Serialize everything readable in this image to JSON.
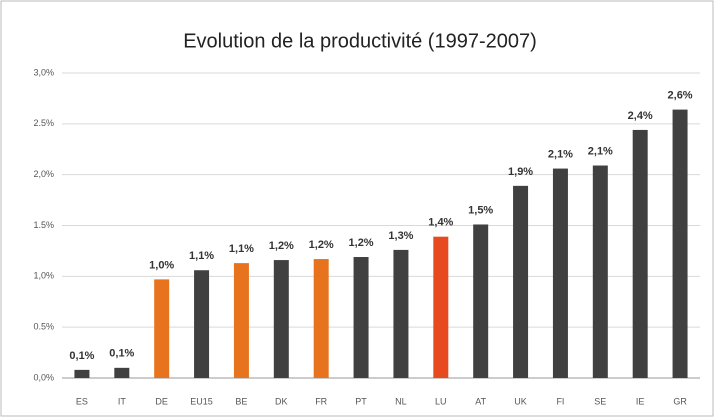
{
  "chart_data": {
    "type": "bar",
    "title": "Evolution de la productivité (1997-2007)",
    "categories": [
      "ES",
      "IT",
      "DE",
      "EU15",
      "BE",
      "DK",
      "FR",
      "PT",
      "NL",
      "LU",
      "AT",
      "UK",
      "FI",
      "SE",
      "IE",
      "GR"
    ],
    "values": [
      0.08,
      0.1,
      0.97,
      1.06,
      1.13,
      1.16,
      1.17,
      1.19,
      1.26,
      1.39,
      1.51,
      1.89,
      2.06,
      2.09,
      2.44,
      2.64
    ],
    "value_labels": [
      "0,1%",
      "0,1%",
      "1,0%",
      "1,1%",
      "1,1%",
      "1,2%",
      "1,2%",
      "1,2%",
      "1,3%",
      "1,4%",
      "1,5%",
      "1,9%",
      "2,1%",
      "2,1%",
      "2,4%",
      "2,6%"
    ],
    "colors": [
      "#404040",
      "#404040",
      "#e8731f",
      "#404040",
      "#e8731f",
      "#404040",
      "#e8731f",
      "#404040",
      "#404040",
      "#e84a1f",
      "#404040",
      "#404040",
      "#404040",
      "#404040",
      "#404040",
      "#404040"
    ],
    "ylim": [
      0,
      3
    ],
    "yticks": [
      {
        "value": 0,
        "label": "0,0%"
      },
      {
        "value": 0.5,
        "label": "0.5%"
      },
      {
        "value": 1,
        "label": "1,0%"
      },
      {
        "value": 1.5,
        "label": "1.5%"
      },
      {
        "value": 2,
        "label": "2,0%"
      },
      {
        "value": 2.5,
        "label": "2.5%"
      },
      {
        "value": 3,
        "label": "3,0%"
      }
    ],
    "grid": true
  }
}
